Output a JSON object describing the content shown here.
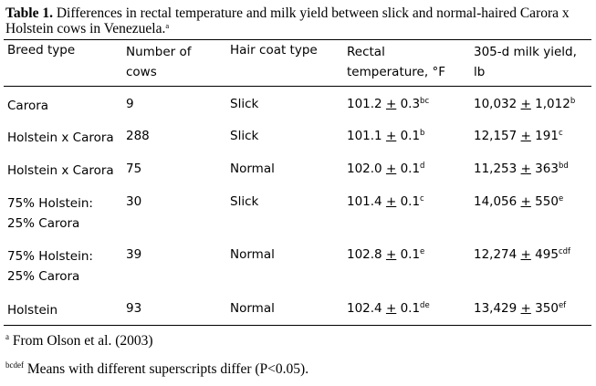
{
  "caption": {
    "label": "Table 1.",
    "text": "Differences in rectal temperature and milk yield between slick and normal-haired Carora x Holstein cows in Venezuela.",
    "marker": "a"
  },
  "headers": {
    "breed": [
      "Breed type"
    ],
    "number": [
      "Number of",
      "cows"
    ],
    "coat": [
      "Hair coat type"
    ],
    "temp": [
      "Rectal",
      "temperature, °F"
    ],
    "milk": [
      "305-d milk yield,",
      "lb"
    ]
  },
  "rows": [
    {
      "breed": [
        "Carora"
      ],
      "number": "9",
      "coat": "Slick",
      "temp": {
        "mean": "101.2",
        "pm": "+",
        "se": "0.3",
        "sup": "bc"
      },
      "milk": {
        "mean": "10,032",
        "pm": "+",
        "se": "1,012",
        "sup": "b"
      }
    },
    {
      "breed": [
        "Holstein x Carora"
      ],
      "number": "288",
      "coat": "Slick",
      "temp": {
        "mean": "101.1",
        "pm": "+",
        "se": "0.1",
        "sup": "b"
      },
      "milk": {
        "mean": "12,157",
        "pm": "+",
        "se": "191",
        "sup": "c"
      }
    },
    {
      "breed": [
        "Holstein x Carora"
      ],
      "number": "75",
      "coat": "Normal",
      "temp": {
        "mean": "102.0",
        "pm": "+",
        "se": "0.1",
        "sup": "d"
      },
      "milk": {
        "mean": "11,253",
        "pm": "+",
        "se": "363",
        "sup": "bd"
      }
    },
    {
      "breed": [
        "75% Holstein:",
        "25% Carora"
      ],
      "number": "30",
      "coat": "Slick",
      "temp": {
        "mean": "101.4",
        "pm": "+",
        "se": "0.1",
        "sup": "c"
      },
      "milk": {
        "mean": "14,056",
        "pm": "+",
        "se": "550",
        "sup": "e"
      }
    },
    {
      "breed": [
        "75% Holstein:",
        "25% Carora"
      ],
      "number": "39",
      "coat": "Normal",
      "temp": {
        "mean": "102.8",
        "pm": "+",
        "se": "0.1",
        "sup": "e"
      },
      "milk": {
        "mean": "12,274",
        "pm": "+",
        "se": "495",
        "sup": "cdf"
      }
    },
    {
      "breed": [
        "Holstein"
      ],
      "number": "93",
      "coat": "Normal",
      "temp": {
        "mean": "102.4",
        "pm": "+",
        "se": "0.1",
        "sup": "de"
      },
      "milk": {
        "mean": "13,429",
        "pm": "+",
        "se": "350",
        "sup": "ef"
      }
    }
  ],
  "footnotes": [
    {
      "marker": "a",
      "text": "From Olson et al. (2003)"
    },
    {
      "marker": "bcdef",
      "text": "Means with different superscripts differ (P<0.05)."
    }
  ]
}
